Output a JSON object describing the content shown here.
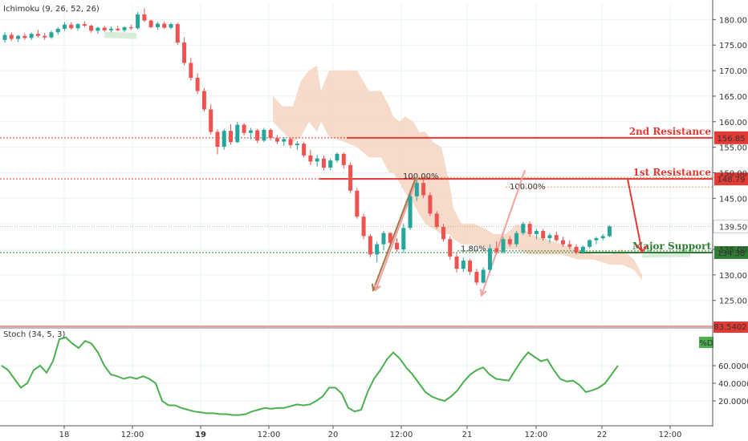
{
  "chart_data": {
    "type": "candlestick",
    "indicator_label": "Ichimoku (9, 26, 52, 26)",
    "price_axis": {
      "ticks": [
        "180.00",
        "175.00",
        "170.00",
        "165.00",
        "160.00",
        "155.00",
        "150.00",
        "145.00",
        "140.00",
        "135.00",
        "130.00",
        "125.00"
      ],
      "tick_values": [
        180,
        175,
        170,
        165,
        160,
        155,
        150,
        145,
        140,
        135,
        130,
        125
      ],
      "ylim": [
        120.4,
        183.2
      ],
      "current_price": "139.50",
      "current_price_value": 139.5
    },
    "time_axis": {
      "ticks": [
        "18",
        "12:00",
        "19",
        "12:00",
        "20",
        "12:00",
        "21",
        "12:00",
        "22",
        "12:00"
      ],
      "bold": [
        false,
        false,
        true,
        false,
        false,
        false,
        false,
        false,
        false,
        false
      ]
    },
    "levels": [
      {
        "name": "2nd Resistance",
        "value": 156.85,
        "label": "156.85",
        "color": "#e53935"
      },
      {
        "name": "1st Resistance",
        "value": 148.79,
        "label": "148.79",
        "color": "#e53935"
      },
      {
        "name": "Major Support",
        "value": 134.38,
        "label": "134.38",
        "color": "#2e7d32"
      }
    ],
    "fib_labels": {
      "top": "100.00%",
      "right": "100.00%",
      "low": "1.80%"
    },
    "candles": [
      [
        176,
        177.5,
        175.5,
        177
      ],
      [
        177,
        177.5,
        175.8,
        176.2
      ],
      [
        176.2,
        177,
        175.6,
        176.8
      ],
      [
        176.8,
        177.3,
        176,
        176.4
      ],
      [
        176.4,
        177.5,
        176,
        177.2
      ],
      [
        177.2,
        178,
        176.5,
        176.8
      ],
      [
        176.8,
        177.4,
        176,
        176.5
      ],
      [
        176.5,
        177.8,
        176.2,
        177.5
      ],
      [
        177.5,
        178.5,
        177,
        178.2
      ],
      [
        178.2,
        179.5,
        177.8,
        179
      ],
      [
        179,
        179.5,
        178,
        178.3
      ],
      [
        178.3,
        179.3,
        177.8,
        179.1
      ],
      [
        179.1,
        179.6,
        178.5,
        178.8
      ],
      [
        178.8,
        179,
        177.4,
        177.8
      ],
      [
        177.8,
        178.6,
        177.2,
        178.4
      ],
      [
        178.4,
        178.8,
        177.6,
        177.9
      ],
      [
        177.9,
        178.6,
        177.5,
        178.2
      ],
      [
        178.2,
        178.8,
        177.7,
        177.9
      ],
      [
        177.9,
        178.7,
        177.5,
        178.5
      ],
      [
        178.5,
        179,
        178,
        178.3
      ],
      [
        178.3,
        181.5,
        178,
        181
      ],
      [
        181,
        182.2,
        179.5,
        179.8
      ],
      [
        179.8,
        180,
        178.3,
        178.5
      ],
      [
        178.5,
        179.5,
        178,
        179.2
      ],
      [
        179.2,
        179.6,
        178.2,
        178.4
      ],
      [
        178.4,
        179.4,
        178.1,
        179.1
      ],
      [
        179.1,
        179.4,
        175,
        175.5
      ],
      [
        175.5,
        176.5,
        171,
        171.5
      ],
      [
        171.5,
        172.5,
        168,
        168.6
      ],
      [
        168.6,
        169.5,
        165.4,
        166
      ],
      [
        166,
        166.6,
        162,
        162.4
      ],
      [
        162.4,
        163.4,
        157.5,
        158
      ],
      [
        158,
        158.5,
        153.6,
        155.1
      ],
      [
        155.1,
        158.6,
        154.5,
        158.2
      ],
      [
        158.2,
        159.5,
        155.5,
        156
      ],
      [
        156,
        160,
        155.8,
        159.4
      ],
      [
        159.4,
        159.7,
        157.3,
        157.8
      ],
      [
        157.8,
        158.8,
        156.5,
        158.3
      ],
      [
        158.3,
        158.6,
        155.8,
        156.3
      ],
      [
        156.3,
        158.8,
        156,
        158.4
      ],
      [
        158.4,
        158.7,
        156.3,
        156.8
      ],
      [
        156.8,
        157.4,
        155.6,
        156.1
      ],
      [
        156.1,
        157,
        155.3,
        156.6
      ],
      [
        156.6,
        156.9,
        154.8,
        155.4
      ],
      [
        155.4,
        156.2,
        154.5,
        155.7
      ],
      [
        155.7,
        156,
        153,
        153.4
      ],
      [
        153.4,
        154.5,
        151.5,
        152.2
      ],
      [
        152.2,
        153.5,
        151.2,
        152.8
      ],
      [
        152.8,
        153.4,
        150.4,
        151
      ],
      [
        151,
        152.8,
        150.5,
        152.4
      ],
      [
        152.4,
        154,
        152,
        153.7
      ],
      [
        153.7,
        154,
        150.8,
        151.5
      ],
      [
        151.5,
        152,
        146,
        146.5
      ],
      [
        146.5,
        147,
        141,
        141.4
      ],
      [
        141.4,
        142,
        137,
        137.6
      ],
      [
        137.6,
        138,
        133.5,
        134
      ],
      [
        134,
        136.5,
        132.5,
        136
      ],
      [
        136,
        138.6,
        134.8,
        138.2
      ],
      [
        138.2,
        138.4,
        135.8,
        136.3
      ],
      [
        136.3,
        137.2,
        134.5,
        135
      ],
      [
        135,
        140,
        134.3,
        139.2
      ],
      [
        139.2,
        146,
        138.8,
        145.4
      ],
      [
        145.4,
        149,
        144.5,
        148
      ],
      [
        148,
        149.2,
        145,
        145.6
      ],
      [
        145.6,
        146.2,
        141.5,
        142
      ],
      [
        142,
        142.5,
        139,
        139.4
      ],
      [
        139.4,
        140,
        136.5,
        137
      ],
      [
        137,
        137.6,
        133,
        133.6
      ],
      [
        133.6,
        134.2,
        130.5,
        131.2
      ],
      [
        131.2,
        133.4,
        130.6,
        132.8
      ],
      [
        132.8,
        133.2,
        130,
        130.6
      ],
      [
        130.6,
        131.2,
        128,
        128.5
      ],
      [
        128.5,
        131.5,
        128.3,
        131
      ],
      [
        131,
        136,
        130.5,
        135.2
      ],
      [
        135.2,
        136.6,
        134,
        134.5
      ],
      [
        134.5,
        137.5,
        134.2,
        137
      ],
      [
        137,
        137.6,
        135.5,
        136
      ],
      [
        136,
        138.6,
        135.5,
        138.2
      ],
      [
        138.2,
        140.4,
        137.8,
        140
      ],
      [
        140,
        140.5,
        137.5,
        138
      ],
      [
        138,
        139,
        137,
        138.6
      ],
      [
        138.6,
        139,
        136.7,
        137.2
      ],
      [
        137.2,
        138.2,
        136.2,
        137.8
      ],
      [
        137.8,
        138.5,
        136.5,
        136.8
      ],
      [
        136.8,
        137.5,
        135.5,
        136
      ],
      [
        136,
        136.8,
        135,
        135.5
      ],
      [
        135.5,
        136,
        134,
        134.4
      ],
      [
        134.4,
        135.8,
        134.1,
        135.5
      ],
      [
        135.5,
        137,
        135.2,
        136.8
      ],
      [
        136.8,
        137.5,
        136,
        137.2
      ],
      [
        137.2,
        138,
        136.8,
        137.6
      ],
      [
        137.6,
        139.7,
        137.4,
        139.5
      ]
    ]
  },
  "stoch_pane": {
    "label": "Stoch (34, 5, 3)",
    "ticks": [
      "60.0000",
      "40.0000",
      "20.0000"
    ],
    "tick_values": [
      60,
      40,
      20
    ],
    "ylim": [
      0,
      100
    ],
    "separator_label": "83.5402",
    "series_badge": "%D",
    "series_color": "#4caf50",
    "values": [
      60,
      55,
      45,
      35,
      40,
      55,
      60,
      52,
      65,
      90,
      92,
      85,
      80,
      88,
      85,
      75,
      60,
      50,
      48,
      45,
      47,
      45,
      48,
      45,
      40,
      20,
      15,
      15,
      12,
      10,
      8,
      7,
      6,
      6,
      5,
      5,
      4,
      4,
      5,
      8,
      10,
      12,
      11,
      12,
      12,
      14,
      16,
      15,
      16,
      20,
      25,
      35,
      35,
      28,
      12,
      8,
      10,
      30,
      45,
      55,
      67,
      75,
      68,
      58,
      50,
      40,
      30,
      25,
      22,
      20,
      25,
      32,
      42,
      50,
      55,
      58,
      50,
      45,
      44,
      43,
      55,
      66,
      75,
      70,
      65,
      67,
      55,
      45,
      42,
      43,
      38,
      30,
      32,
      35,
      40,
      50,
      60
    ]
  },
  "colors": {
    "up": "#26a69a",
    "down": "#ef5350",
    "cloud": "#f5d5c2",
    "grid": "#e8f4ec"
  }
}
